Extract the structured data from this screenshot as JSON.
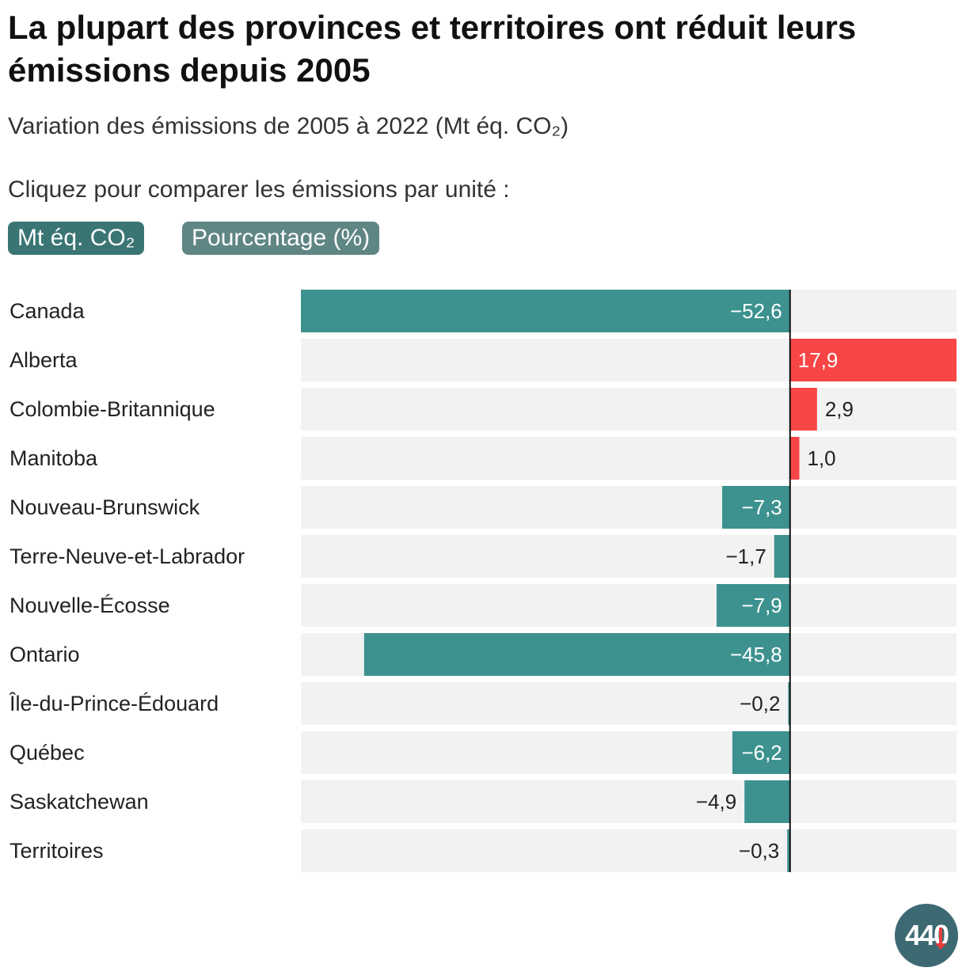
{
  "header": {
    "title": "La plupart des provinces et territoires ont réduit leurs émissions depuis 2005",
    "subtitle": "Variation des émissions de 2005 à 2022 (Mt éq. CO₂)",
    "instruction": "Cliquez pour comparer les émissions par unité :"
  },
  "toggle": {
    "mt_label": "Mt éq. CO₂",
    "pct_label": "Pourcentage (%)"
  },
  "colors": {
    "decrease": "#3d928f",
    "increase": "#f84545",
    "track": "#f2f2f2",
    "axis": "#111111",
    "label_inside": "#ffffff",
    "label_outside": "#222222"
  },
  "logo": {
    "text": "440"
  },
  "chart_data": {
    "type": "bar",
    "orientation": "horizontal",
    "title": "La plupart des provinces et territoires ont réduit leurs émissions depuis 2005",
    "subtitle": "Variation des émissions de 2005 à 2022 (Mt éq. CO₂)",
    "unit": "Mt éq. CO₂",
    "xlim": [
      -52.6,
      17.9
    ],
    "categories": [
      "Canada",
      "Alberta",
      "Colombie-Britannique",
      "Manitoba",
      "Nouveau-Brunswick",
      "Terre-Neuve-et-Labrador",
      "Nouvelle-Écosse",
      "Ontario",
      "Île-du-Prince-Édouard",
      "Québec",
      "Saskatchewan",
      "Territoires"
    ],
    "values": [
      -52.6,
      17.9,
      2.9,
      1.0,
      -7.3,
      -1.7,
      -7.9,
      -45.8,
      -0.2,
      -6.2,
      -4.9,
      -0.3
    ],
    "labels": [
      "−52,6",
      "17,9",
      "2,9",
      "1,0",
      "−7,3",
      "−1,7",
      "−7,9",
      "−45,8",
      "−0,2",
      "−6,2",
      "−4,9",
      "−0,3"
    ]
  }
}
